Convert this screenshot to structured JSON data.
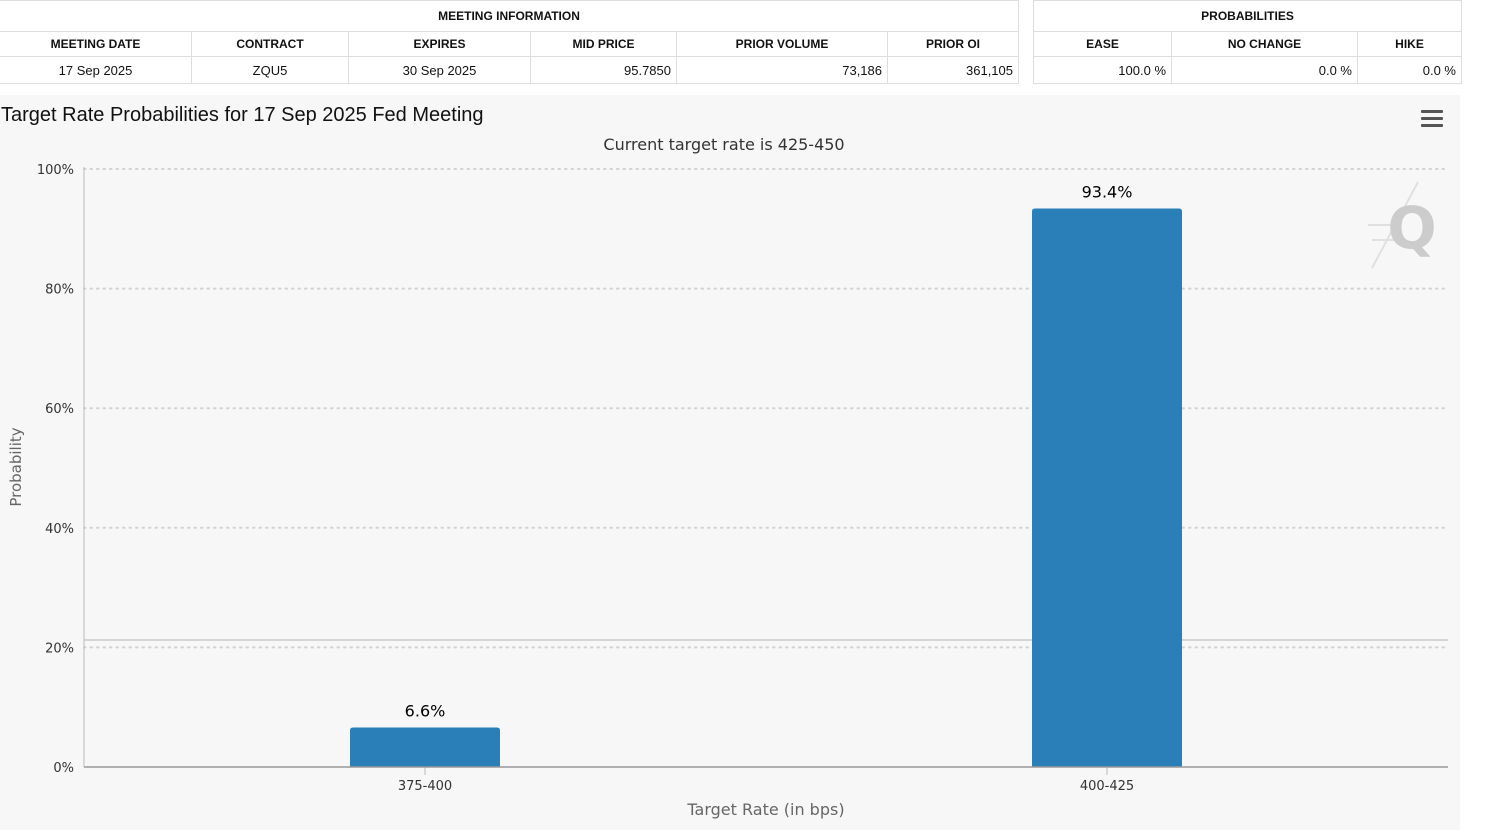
{
  "meeting_info": {
    "header": "MEETING INFORMATION",
    "columns": [
      "MEETING DATE",
      "CONTRACT",
      "EXPIRES",
      "MID PRICE",
      "PRIOR VOLUME",
      "PRIOR OI"
    ],
    "row": [
      "17 Sep 2025",
      "ZQU5",
      "30 Sep 2025",
      "95.7850",
      "73,186",
      "361,105"
    ]
  },
  "probabilities": {
    "header": "PROBABILITIES",
    "columns": [
      "EASE",
      "NO CHANGE",
      "HIKE"
    ],
    "row": [
      "100.0 %",
      "0.0 %",
      "0.0 %"
    ]
  },
  "menu_icon": "hamburger-menu-icon",
  "watermark_icon": "q-logo-icon",
  "chart_data": {
    "type": "bar",
    "title": "Target Rate Probabilities for 17 Sep 2025 Fed Meeting",
    "subtitle": "Current target rate is 425-450",
    "xlabel": "Target Rate (in bps)",
    "ylabel": "Probability",
    "categories": [
      "375-400",
      "400-425"
    ],
    "values": [
      6.6,
      93.4
    ],
    "data_labels": [
      "6.6%",
      "93.4%"
    ],
    "ylim": [
      0,
      100
    ],
    "yticks": [
      0,
      20,
      40,
      60,
      80,
      100
    ],
    "ytick_labels": [
      "0%",
      "20%",
      "40%",
      "60%",
      "80%",
      "100%"
    ],
    "grid": true,
    "bar_color": "#2a7fb8"
  }
}
